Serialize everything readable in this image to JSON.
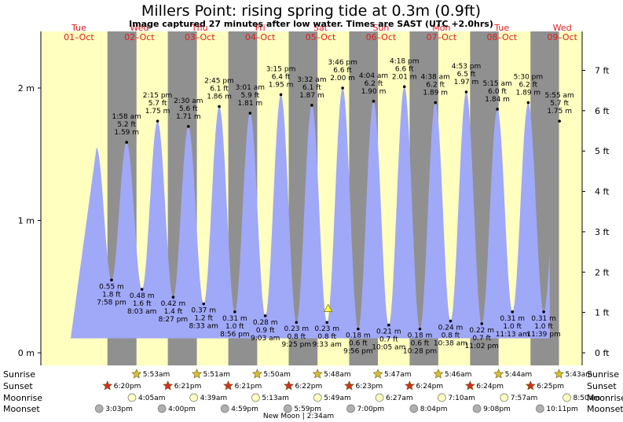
{
  "title": "Millers Point: rising  spring tide at 0.3m (0.9ft)",
  "subtitle": "Image captured 27 minutes after low water. Times are SAST (UTC +2.0hrs)",
  "colors": {
    "day_band": "#ffffc0",
    "night_band": "#909090",
    "water": "#a0a8f8",
    "day_label": "#e01b1b"
  },
  "days": [
    {
      "name": "Tue",
      "date": "01–Oct"
    },
    {
      "name": "Wed",
      "date": "02–Oct"
    },
    {
      "name": "Thu",
      "date": "03–Oct"
    },
    {
      "name": "Fri",
      "date": "04–Oct"
    },
    {
      "name": "Sat",
      "date": "05–Oct"
    },
    {
      "name": "Sun",
      "date": "06–Oct"
    },
    {
      "name": "Mon",
      "date": "07–Oct"
    },
    {
      "name": "Tue",
      "date": "08–Oct"
    },
    {
      "name": "Wed",
      "date": "09–Oct"
    }
  ],
  "left_axis_labels": [
    "0 m",
    "1 m",
    "2 m"
  ],
  "right_axis_labels": [
    "0 ft",
    "1 ft",
    "2 ft",
    "3 ft",
    "4 ft",
    "5 ft",
    "6 ft",
    "7 ft"
  ],
  "rows": {
    "sunrise": "Sunrise",
    "sunset": "Sunset",
    "moonrise": "Moonrise",
    "moonset": "Moonset"
  },
  "sunrise": [
    "5:53am",
    "5:51am",
    "5:50am",
    "5:48am",
    "5:47am",
    "5:46am",
    "5:44am",
    "5:43am"
  ],
  "sunset": [
    "6:20pm",
    "6:21pm",
    "6:21pm",
    "6:22pm",
    "6:23pm",
    "6:24pm",
    "6:24pm",
    "6:25pm"
  ],
  "moonrise": [
    "4:05am",
    "4:39am",
    "5:13am",
    "5:49am",
    "6:27am",
    "7:10am",
    "7:57am",
    "8:50am"
  ],
  "moonset": [
    "3:03pm",
    "4:00pm",
    "4:59pm",
    "5:59pm",
    "7:00pm",
    "8:04pm",
    "9:08pm",
    "10:11pm"
  ],
  "moon_phase": "New Moon | 2:34am",
  "chart_data": {
    "type": "area",
    "title": "Millers Point: rising  spring tide at 0.3m (0.9ft)",
    "subtitle": "Image captured 27 minutes after low water. Times are SAST (UTC +2.0hrs)",
    "x_range": [
      "01-Oct 00:00",
      "09-Oct 24:00"
    ],
    "y_left": {
      "unit": "m",
      "ticks": [
        0,
        1,
        2
      ]
    },
    "y_right": {
      "unit": "ft",
      "ticks": [
        0,
        1,
        2,
        3,
        4,
        5,
        6,
        7
      ]
    },
    "current_level_m": 0.3,
    "extremes": [
      {
        "day": 1,
        "time": "7:58 pm",
        "m": "0.55 m",
        "ft": "1.8 ft",
        "v": 0.55,
        "type": "low"
      },
      {
        "day": 2,
        "time": "1:58 am",
        "m": "1.59 m",
        "ft": "5.2 ft",
        "v": 1.59,
        "type": "high"
      },
      {
        "day": 2,
        "time": "8:03 am",
        "m": "0.48 m",
        "ft": "1.6 ft",
        "v": 0.48,
        "type": "low"
      },
      {
        "day": 2,
        "time": "2:15 pm",
        "m": "1.75 m",
        "ft": "5.7 ft",
        "v": 1.75,
        "type": "high"
      },
      {
        "day": 2,
        "time": "8:27 pm",
        "m": "0.42 m",
        "ft": "1.4 ft",
        "v": 0.42,
        "type": "low"
      },
      {
        "day": 3,
        "time": "2:30 am",
        "m": "1.71 m",
        "ft": "5.6 ft",
        "v": 1.71,
        "type": "high"
      },
      {
        "day": 3,
        "time": "8:33 am",
        "m": "0.37 m",
        "ft": "1.2 ft",
        "v": 0.37,
        "type": "low"
      },
      {
        "day": 3,
        "time": "2:45 pm",
        "m": "1.86 m",
        "ft": "6.1 ft",
        "v": 1.86,
        "type": "high"
      },
      {
        "day": 3,
        "time": "8:56 pm",
        "m": "0.31 m",
        "ft": "1.0 ft",
        "v": 0.31,
        "type": "low"
      },
      {
        "day": 4,
        "time": "3:01 am",
        "m": "1.81 m",
        "ft": "5.9 ft",
        "v": 1.81,
        "type": "high"
      },
      {
        "day": 4,
        "time": "9:03 am",
        "m": "0.28 m",
        "ft": "0.9 ft",
        "v": 0.28,
        "type": "low"
      },
      {
        "day": 4,
        "time": "3:15 pm",
        "m": "1.95 m",
        "ft": "6.4 ft",
        "v": 1.95,
        "type": "high"
      },
      {
        "day": 4,
        "time": "9:25 pm",
        "m": "0.23 m",
        "ft": "0.8 ft",
        "v": 0.23,
        "type": "low"
      },
      {
        "day": 5,
        "time": "3:32 am",
        "m": "1.87 m",
        "ft": "6.1 ft",
        "v": 1.87,
        "type": "high"
      },
      {
        "day": 5,
        "time": "9:33 am",
        "m": "0.23 m",
        "ft": "0.8 ft",
        "v": 0.23,
        "type": "low"
      },
      {
        "day": 5,
        "time": "3:46 pm",
        "m": "2.00 m",
        "ft": "6.6 ft",
        "v": 2.0,
        "type": "high"
      },
      {
        "day": 5,
        "time": "9:56 pm",
        "m": "0.18 m",
        "ft": "0.6 ft",
        "v": 0.18,
        "type": "low"
      },
      {
        "day": 6,
        "time": "4:04 am",
        "m": "1.90 m",
        "ft": "6.2 ft",
        "v": 1.9,
        "type": "high"
      },
      {
        "day": 6,
        "time": "10:05 am",
        "m": "0.21 m",
        "ft": "0.7 ft",
        "v": 0.21,
        "type": "low"
      },
      {
        "day": 6,
        "time": "4:18 pm",
        "m": "2.01 m",
        "ft": "6.6 ft",
        "v": 2.01,
        "type": "high"
      },
      {
        "day": 6,
        "time": "10:28 pm",
        "m": "0.18 m",
        "ft": "0.6 ft",
        "v": 0.18,
        "type": "low"
      },
      {
        "day": 7,
        "time": "4:38 am",
        "m": "1.89 m",
        "ft": "6.2 ft",
        "v": 1.89,
        "type": "high"
      },
      {
        "day": 7,
        "time": "10:38 am",
        "m": "0.24 m",
        "ft": "0.8 ft",
        "v": 0.24,
        "type": "low"
      },
      {
        "day": 7,
        "time": "4:53 pm",
        "m": "1.97 m",
        "ft": "6.5 ft",
        "v": 1.97,
        "type": "high"
      },
      {
        "day": 7,
        "time": "11:02 pm",
        "m": "0.22 m",
        "ft": "0.7 ft",
        "v": 0.22,
        "type": "low"
      },
      {
        "day": 8,
        "time": "5:15 am",
        "m": "1.84 m",
        "ft": "6.0 ft",
        "v": 1.84,
        "type": "high"
      },
      {
        "day": 8,
        "time": "11:13 am",
        "m": "0.31 m",
        "ft": "1.0 ft",
        "v": 0.31,
        "type": "low"
      },
      {
        "day": 8,
        "time": "5:30 pm",
        "m": "1.89 m",
        "ft": "6.2 ft",
        "v": 1.89,
        "type": "high"
      },
      {
        "day": 8,
        "time": "11:39 pm",
        "m": "0.31 m",
        "ft": "1.0 ft",
        "v": 0.31,
        "type": "low"
      },
      {
        "day": 9,
        "time": "5:55 am",
        "m": "1.75 m",
        "ft": "5.7 ft",
        "v": 1.75,
        "type": "high"
      }
    ]
  }
}
